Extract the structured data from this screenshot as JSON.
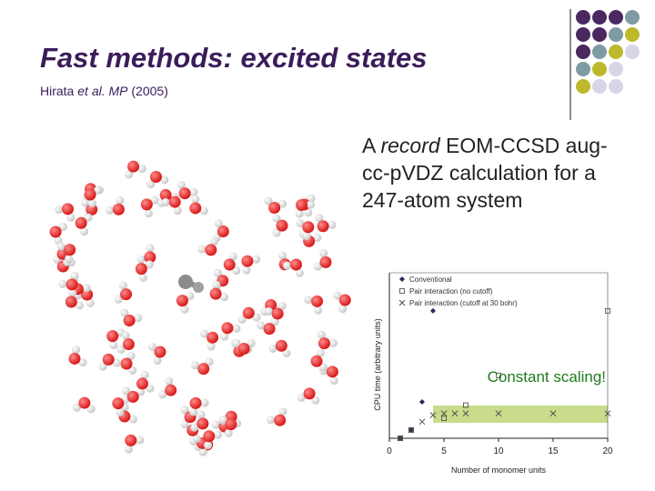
{
  "slide": {
    "title": "Fast methods: excited states",
    "subtitle": {
      "author": "Hirata",
      "etal": "et al.",
      "journal": "MP",
      "year": "(2005)"
    },
    "description": {
      "prefix": "A ",
      "emph": "record",
      "rest": " EOM-CCSD aug-cc-pVDZ calculation for a 247-atom system"
    }
  },
  "colors": {
    "purple": "#4a2860",
    "teal": "#7e9ba3",
    "olive": "#bcb92c",
    "lavender": "#d7d5e6",
    "highlight": "#c8dc8c",
    "highlight_text": "#1e7a1e",
    "oxygen": "#d81818",
    "hydrogen": "#eeeeee"
  },
  "chart_data": {
    "type": "scatter",
    "xlabel": "Number of monomer units",
    "ylabel": "CPU time (arbitrary units)",
    "xlim": [
      0,
      20
    ],
    "x_ticks": [
      0,
      5,
      10,
      15,
      20
    ],
    "legend_position": "top-left",
    "annotation": "Constant scaling!",
    "series": [
      {
        "name": "Conventional",
        "marker": "diamond",
        "x": [
          1,
          2,
          3,
          4
        ],
        "y": [
          0.0,
          0.05,
          0.22,
          0.77
        ]
      },
      {
        "name": "Pair interaction (no cutoff)",
        "marker": "square",
        "x": [
          1,
          2,
          5,
          7,
          10,
          20
        ],
        "y": [
          0.0,
          0.05,
          0.12,
          0.2,
          0.38,
          0.77
        ]
      },
      {
        "name": "Pair interaction (cutoff at 30 bohr)",
        "marker": "x",
        "x": [
          1,
          2,
          3,
          4,
          5,
          6,
          7,
          10,
          15,
          20
        ],
        "y": [
          0.0,
          0.05,
          0.1,
          0.14,
          0.15,
          0.15,
          0.15,
          0.15,
          0.15,
          0.15
        ]
      }
    ]
  }
}
